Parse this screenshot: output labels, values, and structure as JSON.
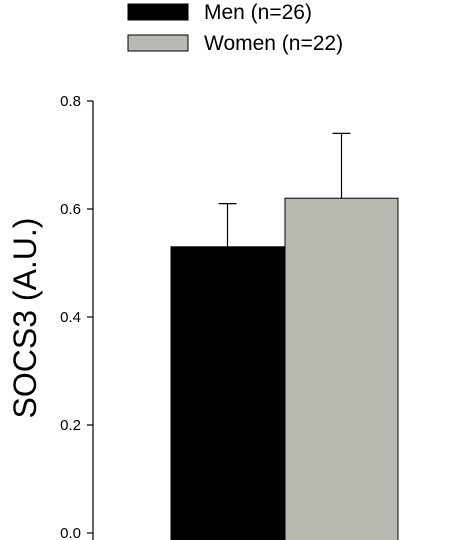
{
  "chart_data": {
    "type": "bar",
    "title": "",
    "xlabel": "",
    "ylabel": "SOCS3  (A.U.)",
    "ylim": [
      0,
      0.8
    ],
    "yticks": [
      "0.0",
      "0.2",
      "0.4",
      "0.6",
      "0.8"
    ],
    "grid": false,
    "legend_position": "top",
    "series": [
      {
        "name": "Men (n=26)",
        "value": 0.53,
        "error": 0.08,
        "color": "#000000"
      },
      {
        "name": "Women (n=22)",
        "value": 0.62,
        "error": 0.12,
        "color": "#b9b9b1"
      }
    ]
  }
}
